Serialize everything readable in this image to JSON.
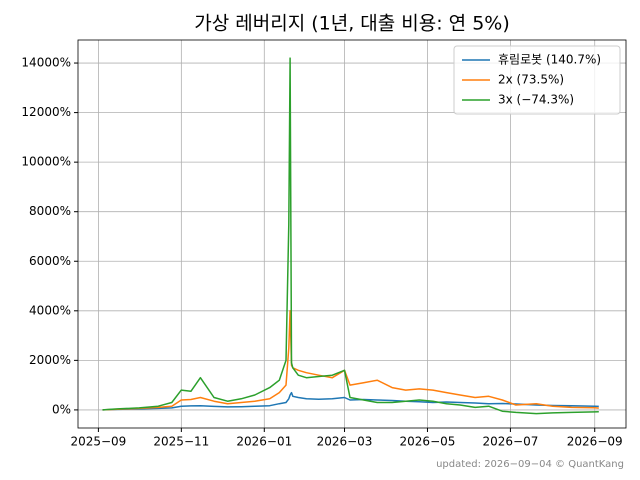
{
  "chart_data": {
    "type": "line",
    "title": "가상 레버리지 (1년, 대출 비용: 연 5%)",
    "footer": "updated: 2026−09−04 © QuantKang",
    "x": [
      "2025-09-04",
      "2025-09-15",
      "2025-10-01",
      "2025-10-15",
      "2025-10-25",
      "2025-11-01",
      "2025-11-08",
      "2025-11-15",
      "2025-11-25",
      "2025-12-05",
      "2025-12-15",
      "2025-12-25",
      "2026-01-05",
      "2026-01-12",
      "2026-01-17",
      "2026-01-19",
      "2026-01-20",
      "2026-01-21",
      "2026-01-22",
      "2026-01-26",
      "2026-02-01",
      "2026-02-10",
      "2026-02-20",
      "2026-03-01",
      "2026-03-05",
      "2026-03-15",
      "2026-03-25",
      "2026-04-05",
      "2026-04-15",
      "2026-04-25",
      "2026-05-05",
      "2026-05-15",
      "2026-05-25",
      "2026-06-05",
      "2026-06-15",
      "2026-06-25",
      "2026-07-05",
      "2026-07-20",
      "2026-08-01",
      "2026-08-15",
      "2026-09-01",
      "2026-09-04"
    ],
    "series": [
      {
        "name": "휴림로봇 (140.7%)",
        "color": "#1f77b4",
        "values": [
          0,
          20,
          40,
          60,
          80,
          150,
          160,
          170,
          140,
          120,
          130,
          150,
          170,
          250,
          300,
          450,
          600,
          700,
          550,
          500,
          450,
          430,
          450,
          500,
          400,
          420,
          400,
          380,
          350,
          330,
          300,
          320,
          300,
          280,
          250,
          260,
          240,
          200,
          180,
          170,
          150,
          140.7
        ]
      },
      {
        "name": "2x (73.5%)",
        "color": "#ff7f0e",
        "values": [
          0,
          30,
          60,
          100,
          150,
          400,
          420,
          500,
          350,
          250,
          300,
          350,
          450,
          700,
          1000,
          2500,
          4000,
          1800,
          1700,
          1600,
          1500,
          1400,
          1300,
          1600,
          1000,
          1100,
          1200,
          900,
          800,
          850,
          800,
          700,
          600,
          500,
          550,
          400,
          200,
          250,
          150,
          100,
          90,
          73.5
        ]
      },
      {
        "name": "3x (−74.3%)",
        "color": "#2ca02c",
        "values": [
          0,
          40,
          80,
          150,
          300,
          800,
          750,
          1300,
          500,
          350,
          450,
          600,
          900,
          1200,
          2000,
          7500,
          14200,
          1900,
          1700,
          1400,
          1300,
          1350,
          1400,
          1600,
          500,
          400,
          300,
          300,
          350,
          400,
          350,
          250,
          200,
          100,
          150,
          -50,
          -100,
          -150,
          -120,
          -100,
          -80,
          -74.3
        ]
      }
    ],
    "xlim": [
      "2025-08-17",
      "2026-09-24"
    ],
    "xticks": [
      {
        "value": "2025-09-01",
        "label": "2025−09"
      },
      {
        "value": "2025-11-01",
        "label": "2025−11"
      },
      {
        "value": "2026-01-01",
        "label": "2026−01"
      },
      {
        "value": "2026-03-01",
        "label": "2026−03"
      },
      {
        "value": "2026-05-01",
        "label": "2026−05"
      },
      {
        "value": "2026-07-01",
        "label": "2026−07"
      },
      {
        "value": "2026-09-01",
        "label": "2026−09"
      }
    ],
    "ylim": [
      -730,
      14930
    ],
    "yticks": [
      {
        "value": 0,
        "label": "0%"
      },
      {
        "value": 2000,
        "label": "2000%"
      },
      {
        "value": 4000,
        "label": "4000%"
      },
      {
        "value": 6000,
        "label": "6000%"
      },
      {
        "value": 8000,
        "label": "8000%"
      },
      {
        "value": 10000,
        "label": "10000%"
      },
      {
        "value": 12000,
        "label": "12000%"
      },
      {
        "value": 14000,
        "label": "14000%"
      }
    ],
    "grid": true,
    "legend": "upper right"
  }
}
